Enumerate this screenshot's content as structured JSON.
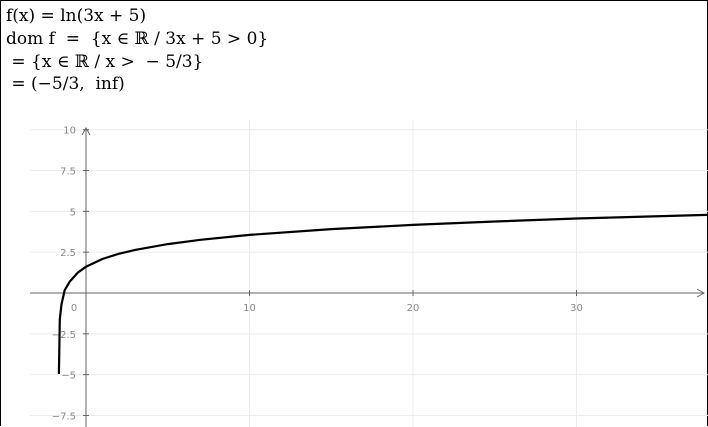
{
  "equations": {
    "line1": "f(x) = ln(3x + 5)",
    "line2": "dom f  =  {x ∈ ℝ / 3x + 5 > 0}",
    "line3": " = {x ∈ ℝ / x >  − 5/3}",
    "line4": " = (−5/3,  inf)"
  },
  "chart_data": {
    "type": "line",
    "function": "ln(3x + 5)",
    "xlim": [
      -3.5,
      38
    ],
    "ylim": [
      -8,
      10
    ],
    "x_ticks": [
      "0",
      "10",
      "20",
      "30"
    ],
    "y_ticks": [
      "10",
      "7.5",
      "5",
      "2.5",
      "-2.5",
      "-5",
      "-7.5"
    ],
    "grid": true,
    "series": [
      {
        "color": "#000000",
        "points": [
          [
            -1.66,
            -4.96
          ],
          [
            -1.6,
            -1.61
          ],
          [
            -1.5,
            -0.69
          ],
          [
            -1.3,
            0.18
          ],
          [
            -1.0,
            0.69
          ],
          [
            -0.5,
            1.25
          ],
          [
            0,
            1.61
          ],
          [
            1,
            2.08
          ],
          [
            2,
            2.4
          ],
          [
            3,
            2.64
          ],
          [
            5,
            2.996
          ],
          [
            7,
            3.26
          ],
          [
            10,
            3.56
          ],
          [
            15,
            3.91
          ],
          [
            20,
            4.17
          ],
          [
            25,
            4.38
          ],
          [
            30,
            4.56
          ],
          [
            38,
            4.78
          ]
        ]
      }
    ]
  }
}
